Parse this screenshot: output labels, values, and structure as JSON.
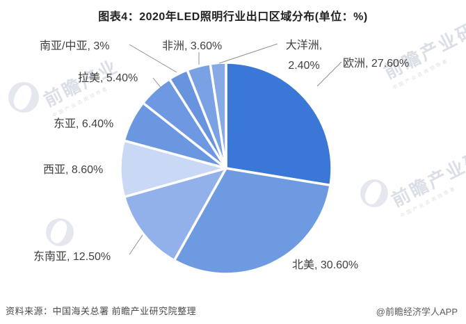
{
  "title": "图表4：2020年LED照明行业出口区域分布(单位：%)",
  "footer": {
    "source": "资料来源：中国海关总署 前瞻产业研究院整理",
    "credit": "@前瞻经济学人APP"
  },
  "watermark": {
    "brand": "前瞻产业研究院",
    "brand_short": "前瞻产业",
    "brand_tail": "研究院",
    "tagline": "中国产业咨询领导者"
  },
  "chart_data": {
    "type": "pie",
    "title": "2020年LED照明行业出口区域分布",
    "unit": "%",
    "start_angle_deg": 0,
    "clockwise": true,
    "legend": "none",
    "label_style": "outside-with-leader-lines",
    "segments": [
      {
        "label": "欧洲",
        "value": 27.6,
        "display": "27.60%",
        "color": "#3B77D7"
      },
      {
        "label": "北美",
        "value": 30.6,
        "display": "30.60%",
        "color": "#6E9AE2"
      },
      {
        "label": "东南亚",
        "value": 12.5,
        "display": "12.50%",
        "color": "#92B1EB"
      },
      {
        "label": "西亚",
        "value": 8.6,
        "display": "8.60%",
        "color": "#C9D9F5"
      },
      {
        "label": "东亚",
        "value": 6.4,
        "display": "6.40%",
        "color": "#6B96E0"
      },
      {
        "label": "拉美",
        "value": 5.4,
        "display": "5.40%",
        "color": "#6E99E2"
      },
      {
        "label": "南亚/中亚",
        "value": 3.0,
        "display": "3%",
        "color": "#6893DE"
      },
      {
        "label": "非洲",
        "value": 3.6,
        "display": "3.60%",
        "color": "#7AA1E4"
      },
      {
        "label": "大洋洲",
        "value": 2.4,
        "display": "2.40%",
        "color": "#87AAE7"
      }
    ]
  }
}
